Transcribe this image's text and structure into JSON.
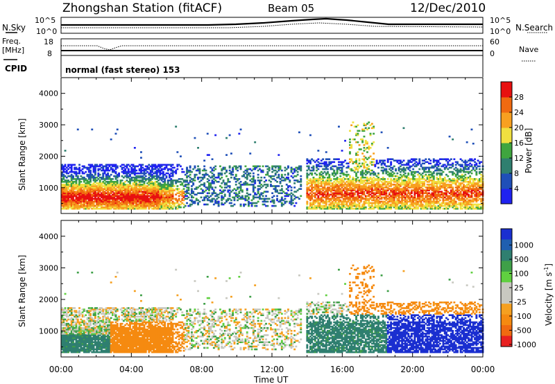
{
  "header": {
    "station_title": "Zhongshan Station (fitACF)",
    "beam_label": "Beam 05",
    "date_label": "12/Dec/2010"
  },
  "noise_panel": {
    "left_label": "N.Sky",
    "right_label": "N.Search",
    "left_ticks": [
      "10^5",
      "10^0"
    ],
    "right_ticks": [
      "10^5",
      "10^0"
    ]
  },
  "freq_panel": {
    "left_label_line1": "Freq.",
    "left_label_line2": "[MHz]",
    "right_label": "Nave",
    "left_ticks": [
      "18",
      "8"
    ],
    "right_ticks": [
      "60",
      "0"
    ]
  },
  "cpid": {
    "label": "CPID",
    "mode_text": "normal (fast stereo) 153"
  },
  "power_panel": {
    "ylabel": "Slant Range [km]",
    "yticks": [
      "4000",
      "3000",
      "2000",
      "1000"
    ],
    "colorbar_label": "Power [dB]",
    "colorbar_ticks": [
      "28",
      "24",
      "20",
      "16",
      "12",
      "8",
      "4"
    ],
    "colors": [
      "#1f22f0",
      "#1f4fb8",
      "#2f7f6f",
      "#3fa53f",
      "#f0e040",
      "#f8a020",
      "#f06a10",
      "#e81010"
    ]
  },
  "velocity_panel": {
    "ylabel": "Slant Range [km]",
    "yticks": [
      "4000",
      "3000",
      "2000",
      "1000"
    ],
    "colorbar_label_main": "Velocity  [m s",
    "colorbar_label_sup": "-1",
    "colorbar_label_end": "]",
    "colorbar_ticks": [
      "1000",
      "500",
      "100",
      "25",
      "-25",
      "-100",
      "-500",
      "-1000"
    ],
    "colors": [
      "#1a2fd0",
      "#1f5fb0",
      "#2f7f70",
      "#3fa048",
      "#60d040",
      "#c8c8c0",
      "#c8c8c0",
      "#f5a020",
      "#f58a10",
      "#f06a10",
      "#e82020"
    ]
  },
  "time_axis": {
    "label": "Time UT",
    "ticks": [
      "00:00",
      "04:00",
      "08:00",
      "12:00",
      "16:00",
      "20:00",
      "00:00"
    ]
  },
  "chart_data": {
    "type": "heatmap",
    "title": "Zhongshan Station (fitACF)  Beam 05  12/Dec/2010",
    "xlabel": "Time UT",
    "ylabel": "Slant Range [km]",
    "xlim": [
      0,
      24
    ],
    "ylim": [
      180,
      4500
    ],
    "power_scale": {
      "label": "Power [dB]",
      "range": [
        0,
        30
      ]
    },
    "velocity_scale": {
      "label": "Velocity [m s-1]",
      "levels": [
        1000,
        500,
        100,
        25,
        -25,
        -100,
        -500,
        -1000
      ]
    },
    "backscatter_regions": [
      {
        "t_start": 0.0,
        "t_end": 7.0,
        "range_km": [
          300,
          1700
        ],
        "peak_power_dB": 28,
        "dominant_velocity": "-100 to -500 (orange) above 04:00, +100 (green) near 00:00"
      },
      {
        "t_start": 7.0,
        "t_end": 13.5,
        "range_km": [
          400,
          1600
        ],
        "peak_power_dB": 12,
        "dominant_velocity": "-25 to 25 (grey)"
      },
      {
        "t_start": 14.0,
        "t_end": 24.0,
        "range_km": [
          300,
          1800
        ],
        "peak_power_dB": 28,
        "dominant_velocity": "+100 to +1000 (green/blue)"
      },
      {
        "t_start": 16.5,
        "t_end": 17.8,
        "range_km": [
          1500,
          3100
        ],
        "peak_power_dB": 20,
        "dominant_velocity": "-100 to -500 (orange)"
      }
    ]
  }
}
